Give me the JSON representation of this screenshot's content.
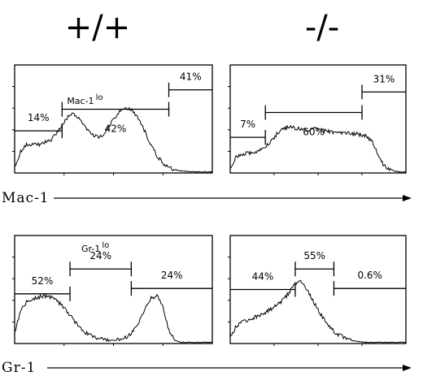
{
  "columns": [
    "+/+",
    "-/-"
  ],
  "rows": [
    {
      "marker_label": "Mac-1"
    },
    {
      "marker_label": "Gr-1"
    }
  ],
  "chart_data": [
    {
      "type": "area",
      "genotype": "+/+",
      "marker": "Mac-1",
      "x": [
        0,
        3,
        6,
        9,
        12,
        15,
        18,
        21,
        24,
        27,
        30,
        33,
        36,
        39,
        42,
        45,
        48,
        51,
        54,
        57,
        60,
        63,
        66,
        69,
        72,
        75,
        78,
        81,
        84,
        87,
        90,
        93,
        96,
        99,
        100
      ],
      "values": [
        0.05,
        0.2,
        0.26,
        0.27,
        0.26,
        0.28,
        0.3,
        0.36,
        0.44,
        0.52,
        0.55,
        0.5,
        0.42,
        0.36,
        0.33,
        0.35,
        0.44,
        0.52,
        0.58,
        0.6,
        0.57,
        0.5,
        0.38,
        0.26,
        0.16,
        0.09,
        0.05,
        0.03,
        0.02,
        0.015,
        0.01,
        0.01,
        0.01,
        0.01,
        0.01
      ],
      "ylim": [
        0,
        1
      ],
      "gates": [
        {
          "label": "14%",
          "x0": 0,
          "x1": 24,
          "level": 0.39
        },
        {
          "label": "42%",
          "x0": 24,
          "x1": 78,
          "level": 0.59
        },
        {
          "label": "41%",
          "x0": 78,
          "x1": 100,
          "level": 0.77
        }
      ],
      "gate_name": {
        "text": "Mac-1",
        "superscript": "lo"
      }
    },
    {
      "type": "area",
      "genotype": "-/-",
      "marker": "Mac-1",
      "x": [
        0,
        3,
        6,
        9,
        12,
        15,
        18,
        21,
        24,
        27,
        30,
        33,
        36,
        39,
        42,
        45,
        48,
        51,
        54,
        57,
        60,
        63,
        66,
        69,
        72,
        75,
        78,
        81,
        84,
        87,
        90,
        93,
        96,
        99,
        100
      ],
      "values": [
        0.05,
        0.14,
        0.17,
        0.18,
        0.19,
        0.2,
        0.22,
        0.26,
        0.31,
        0.37,
        0.41,
        0.42,
        0.42,
        0.41,
        0.41,
        0.4,
        0.41,
        0.4,
        0.39,
        0.38,
        0.38,
        0.37,
        0.37,
        0.36,
        0.36,
        0.35,
        0.34,
        0.28,
        0.17,
        0.08,
        0.04,
        0.02,
        0.01,
        0.01,
        0.01
      ],
      "ylim": [
        0,
        1
      ],
      "gates": [
        {
          "label": "7%",
          "x0": 0,
          "x1": 20,
          "level": 0.33
        },
        {
          "label": "60%",
          "x0": 20,
          "x1": 75,
          "level": 0.56
        },
        {
          "label": "31%",
          "x0": 75,
          "x1": 100,
          "level": 0.75
        }
      ]
    },
    {
      "type": "area",
      "genotype": "+/+",
      "marker": "Gr-1",
      "x": [
        0,
        3,
        6,
        9,
        12,
        15,
        18,
        21,
        24,
        27,
        30,
        33,
        36,
        39,
        42,
        45,
        48,
        51,
        54,
        57,
        60,
        63,
        66,
        69,
        72,
        75,
        78,
        81,
        84,
        87,
        90,
        93,
        96,
        99,
        100
      ],
      "values": [
        0.1,
        0.3,
        0.38,
        0.41,
        0.43,
        0.44,
        0.43,
        0.4,
        0.35,
        0.28,
        0.21,
        0.15,
        0.1,
        0.07,
        0.05,
        0.04,
        0.03,
        0.03,
        0.04,
        0.06,
        0.11,
        0.2,
        0.32,
        0.42,
        0.44,
        0.34,
        0.12,
        0.03,
        0.01,
        0.01,
        0.01,
        0.01,
        0.01,
        0.01,
        0.01
      ],
      "ylim": [
        0,
        1
      ],
      "gates": [
        {
          "label": "52%",
          "x0": 0,
          "x1": 28,
          "level": 0.46
        },
        {
          "label": "24%",
          "x0": 28,
          "x1": 59,
          "level": 0.69
        },
        {
          "label": "24%",
          "x0": 59,
          "x1": 100,
          "level": 0.51
        }
      ],
      "gate_name": {
        "text": "Gr-1",
        "superscript": "lo"
      }
    },
    {
      "type": "area",
      "genotype": "-/-",
      "marker": "Gr-1",
      "x": [
        0,
        3,
        6,
        9,
        12,
        15,
        18,
        21,
        24,
        27,
        30,
        33,
        36,
        39,
        42,
        45,
        48,
        51,
        54,
        57,
        60,
        63,
        66,
        69,
        72,
        75,
        78,
        81,
        84,
        87,
        90,
        93,
        96,
        99,
        100
      ],
      "values": [
        0.05,
        0.15,
        0.19,
        0.21,
        0.23,
        0.25,
        0.27,
        0.3,
        0.33,
        0.36,
        0.4,
        0.46,
        0.54,
        0.58,
        0.55,
        0.46,
        0.37,
        0.28,
        0.21,
        0.15,
        0.1,
        0.07,
        0.05,
        0.03,
        0.02,
        0.015,
        0.01,
        0.01,
        0.01,
        0.01,
        0.01,
        0.01,
        0.01,
        0.01,
        0.01
      ],
      "ylim": [
        0,
        1
      ],
      "gates": [
        {
          "label": "44%",
          "x0": 0,
          "x1": 37,
          "level": 0.5
        },
        {
          "label": "55%",
          "x0": 37,
          "x1": 59,
          "level": 0.69
        },
        {
          "label": "0.6%",
          "x0": 59,
          "x1": 100,
          "level": 0.51
        }
      ]
    }
  ]
}
